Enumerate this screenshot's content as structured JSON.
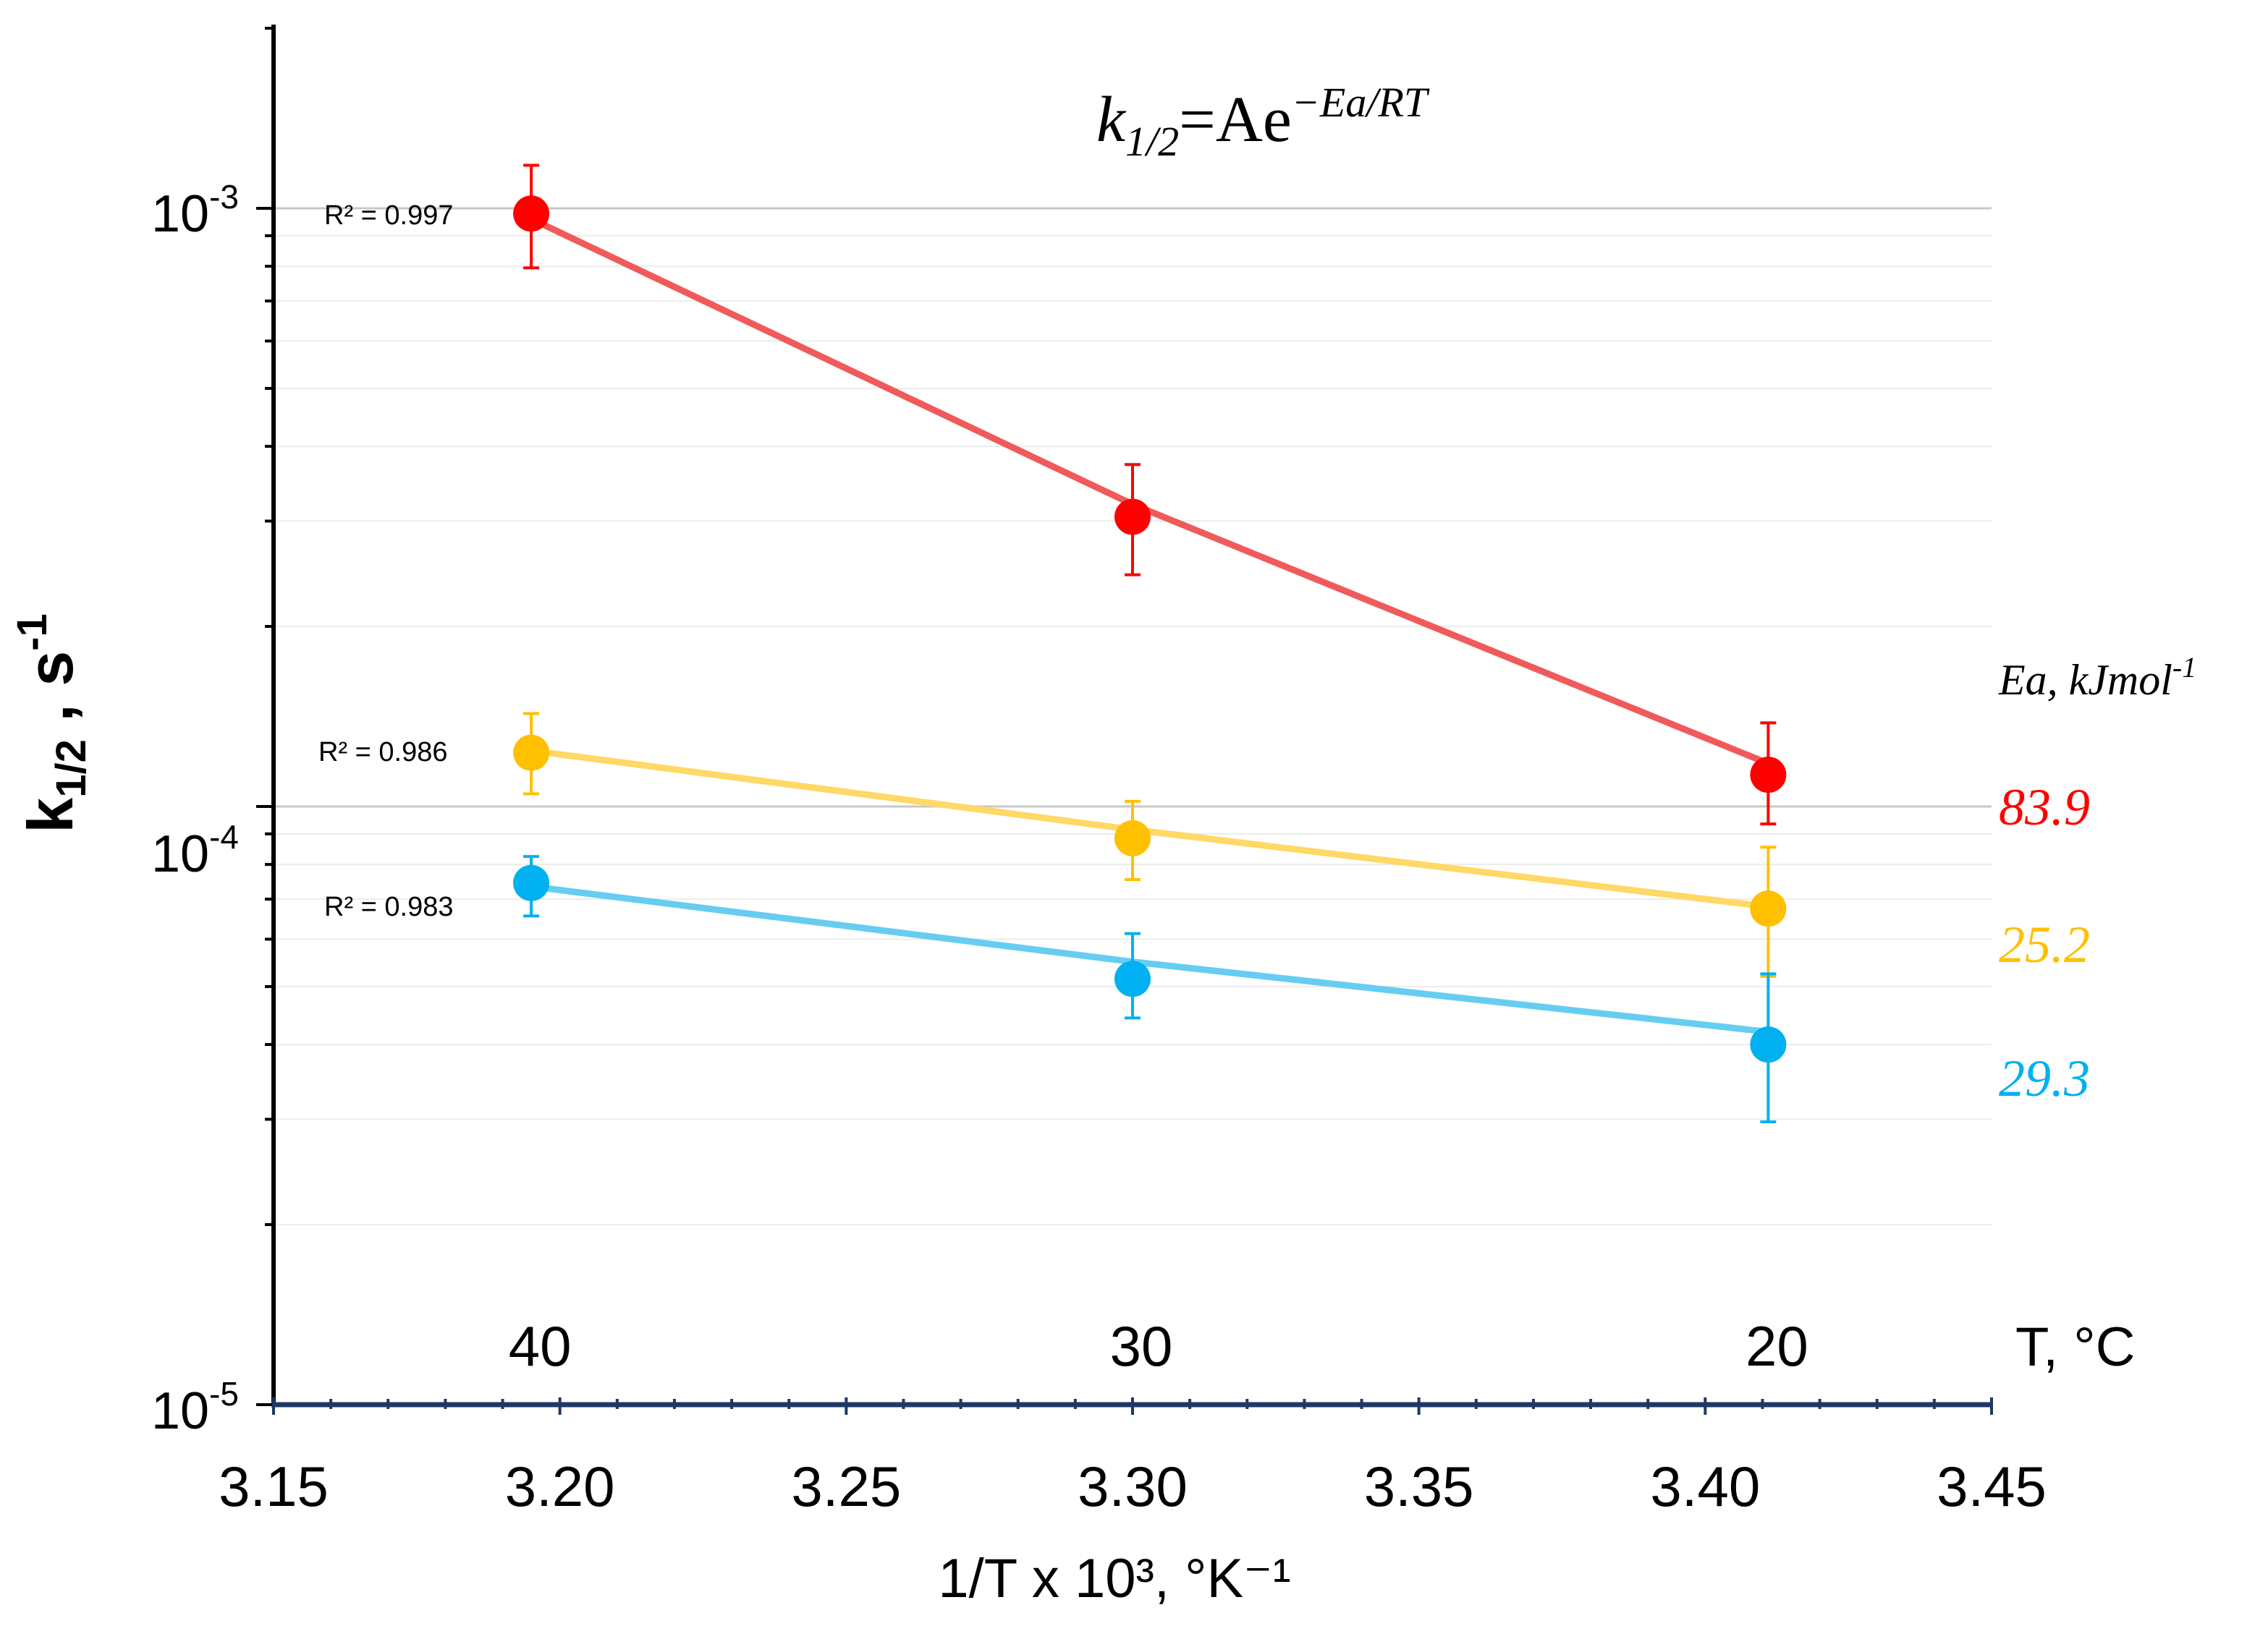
{
  "chart_data": {
    "type": "scatter",
    "title": "",
    "xlabel": "1/T x 10³, °K⁻¹",
    "ylabel": "k1/2 , s-1",
    "ylabel_base": "k",
    "ylabel_sub": "1/2",
    "ylabel_mid": " , s",
    "ylabel_sup": "-1",
    "xlim": [
      3.15,
      3.45
    ],
    "ylim": [
      1e-05,
      0.002
    ],
    "yscale": "log",
    "grid": true,
    "x_ticks": [
      "3.15",
      "3.20",
      "3.25",
      "3.30",
      "3.35",
      "3.40",
      "3.45"
    ],
    "y_ticks": [
      {
        "value": 1e-05,
        "base": "10",
        "exp": "-5"
      },
      {
        "value": 0.0001,
        "base": "10",
        "exp": "-4"
      },
      {
        "value": 0.001,
        "base": "10",
        "exp": "-3"
      }
    ],
    "top_axis": {
      "label": "T, °C",
      "ticks": [
        {
          "label": "40",
          "x": 3.195
        },
        {
          "label": "30",
          "x": 3.3
        },
        {
          "label": "20",
          "x": 3.411
        }
      ]
    },
    "equation": {
      "lhs": "k",
      "sub": "1/2",
      "rhs": "=Ae",
      "sup": "−Ea/RT"
    },
    "ea_header": {
      "text": "Ea, kJmol",
      "sup": "-1"
    },
    "series": [
      {
        "name": "red",
        "color": "#ff0000",
        "line_color": "#f05a5a",
        "x": [
          3.195,
          3.3,
          3.411
        ],
        "y": [
          0.00098,
          0.000305,
          0.000113
        ],
        "err_low": [
          0.000795,
          0.000244,
          9.35e-05
        ],
        "err_high": [
          0.00118,
          0.000373,
          0.000138
        ],
        "fit": [
          0.00096,
          0.00032,
          0.000118
        ],
        "r2_label": "R² = 0.997",
        "ea_value": "83.9"
      },
      {
        "name": "yellow",
        "color": "#ffc000",
        "line_color": "#ffd966",
        "x": [
          3.195,
          3.3,
          3.411
        ],
        "y": [
          0.000123,
          8.85e-05,
          6.75e-05
        ],
        "err_low": [
          0.000105,
          7.55e-05,
          5.2e-05
        ],
        "err_high": [
          0.000143,
          0.000102,
          8.55e-05
        ],
        "fit": [
          0.000124,
          9.15e-05,
          6.8e-05
        ],
        "r2_label": "R² = 0.986",
        "ea_value": "25.2"
      },
      {
        "name": "blue",
        "color": "#00b0f0",
        "line_color": "#66cdf2",
        "x": [
          3.195,
          3.3,
          3.411
        ],
        "y": [
          7.45e-05,
          5.15e-05,
          4e-05
        ],
        "err_low": [
          6.56e-05,
          4.43e-05,
          2.97e-05
        ],
        "err_high": [
          8.25e-05,
          6.13e-05,
          5.25e-05
        ],
        "fit": [
          7.35e-05,
          5.5e-05,
          4.2e-05
        ],
        "r2_label": "R² = 0.983",
        "ea_value": "29.3"
      }
    ]
  }
}
